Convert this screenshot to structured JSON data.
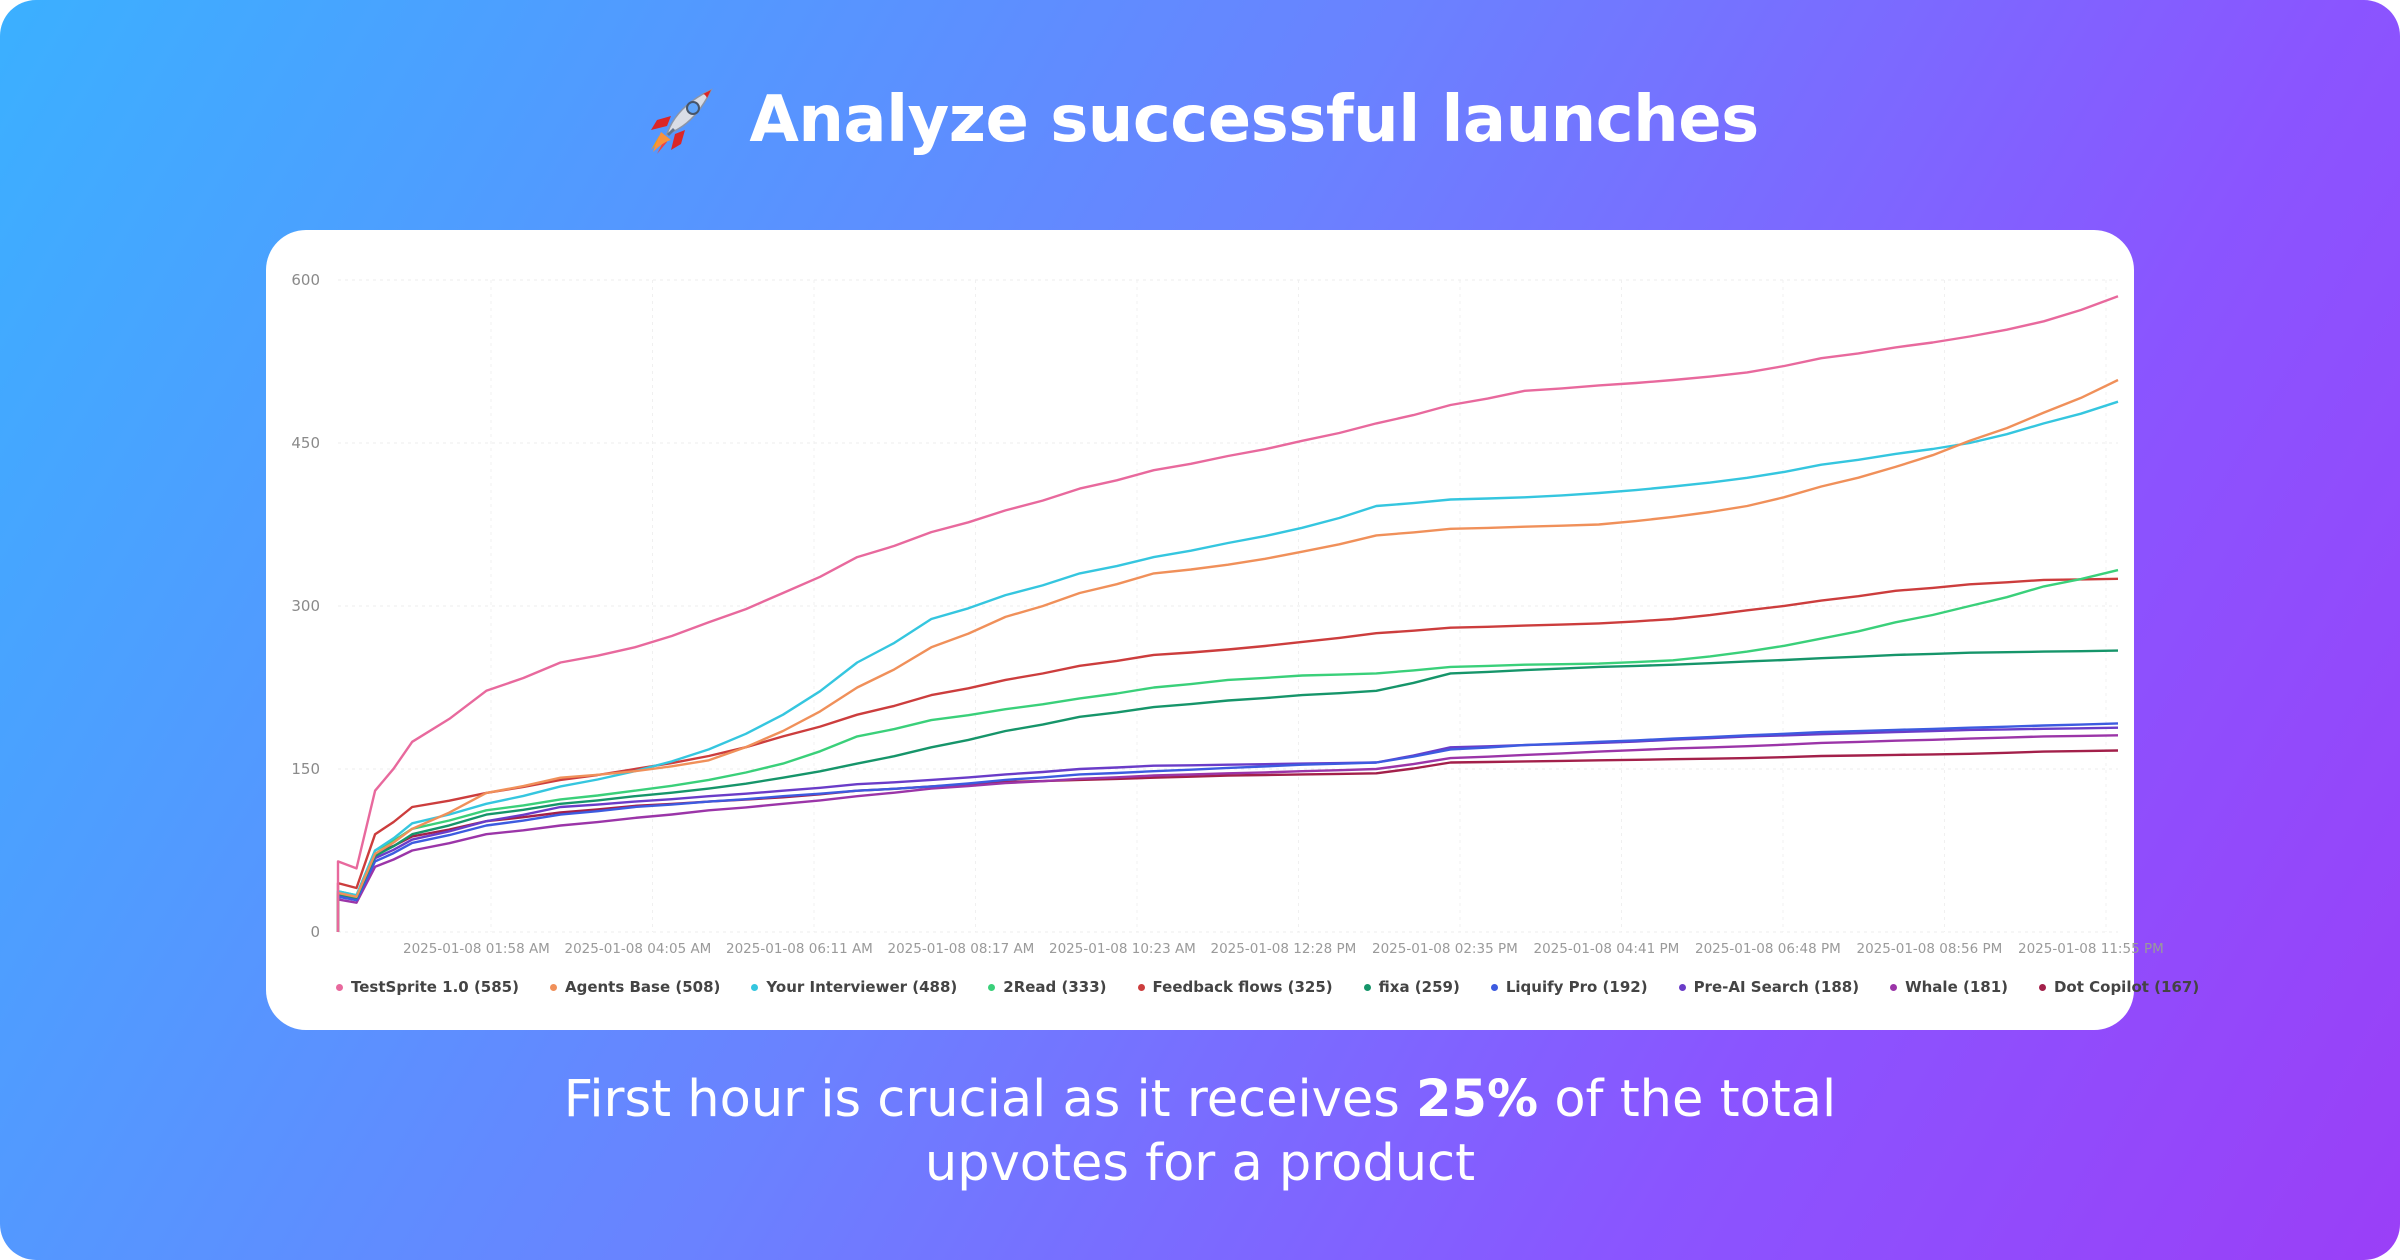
{
  "header": {
    "title": "Analyze successful launches",
    "icon": "rocket-icon"
  },
  "caption": {
    "line1_before": "First hour is crucial as it receives ",
    "line1_bold": "25%",
    "line1_after": " of the total",
    "line2": "upvotes for a product"
  },
  "chart_data": {
    "type": "line",
    "title": "",
    "xlabel": "",
    "ylabel": "",
    "ylim": [
      0,
      600
    ],
    "y_ticks": [
      0,
      150,
      300,
      450,
      600
    ],
    "grid": true,
    "legend_position": "bottom",
    "x_range": [
      "2025-01-08 00:01",
      "2025-01-09 00:00"
    ],
    "x_tick_labels": [
      "2025-01-08 01:58 AM",
      "2025-01-08 04:05 AM",
      "2025-01-08 06:11 AM",
      "2025-01-08 08:17 AM",
      "2025-01-08 10:23 AM",
      "2025-01-08 12:28 PM",
      "2025-01-08 02:35 PM",
      "2025-01-08 04:41 PM",
      "2025-01-08 06:48 PM",
      "2025-01-08 08:56 PM",
      "2025-01-08 11:55 PM"
    ],
    "x_hours": [
      0,
      0.5,
      1,
      2,
      3,
      4,
      5,
      6,
      7,
      8,
      9,
      10,
      11,
      12,
      13,
      14,
      15,
      16,
      17,
      18,
      19,
      20,
      21,
      22,
      23,
      24
    ],
    "series": [
      {
        "name": "TestSprite 1.0 (585)",
        "color": "#e8699d",
        "values": [
          0,
          130,
          175,
          222,
          248,
          262,
          285,
          312,
          345,
          368,
          388,
          408,
          425,
          438,
          452,
          468,
          485,
          498,
          503,
          508,
          515,
          528,
          538,
          548,
          562,
          585
        ]
      },
      {
        "name": "Agents Base (508)",
        "color": "#f0905a",
        "values": [
          0,
          72,
          95,
          128,
          142,
          148,
          158,
          185,
          225,
          262,
          290,
          312,
          330,
          338,
          350,
          365,
          371,
          373,
          375,
          382,
          392,
          410,
          428,
          452,
          478,
          508
        ]
      },
      {
        "name": "Your Interviewer (488)",
        "color": "#35c6df",
        "values": [
          0,
          75,
          100,
          118,
          134,
          148,
          168,
          200,
          248,
          288,
          310,
          330,
          345,
          358,
          372,
          392,
          398,
          400,
          404,
          410,
          418,
          430,
          440,
          450,
          468,
          488
        ]
      },
      {
        "name": "2Read (333)",
        "color": "#3ad07a",
        "values": [
          0,
          75,
          95,
          112,
          122,
          130,
          140,
          155,
          180,
          195,
          205,
          215,
          225,
          232,
          236,
          238,
          244,
          246,
          247,
          250,
          258,
          270,
          285,
          300,
          318,
          333
        ]
      },
      {
        "name": "Feedback flows (325)",
        "color": "#cc3d3d",
        "values": [
          0,
          90,
          115,
          128,
          140,
          150,
          162,
          180,
          200,
          218,
          232,
          245,
          255,
          260,
          267,
          275,
          280,
          282,
          284,
          288,
          296,
          305,
          314,
          320,
          324,
          325
        ]
      },
      {
        "name": "fixa (259)",
        "color": "#16956a",
        "values": [
          0,
          70,
          90,
          108,
          118,
          125,
          132,
          142,
          155,
          170,
          185,
          198,
          207,
          213,
          218,
          222,
          238,
          241,
          244,
          246,
          249,
          252,
          255,
          257,
          258,
          259
        ]
      },
      {
        "name": "Liquify Pro (192)",
        "color": "#3d5be0",
        "values": [
          0,
          65,
          82,
          98,
          108,
          115,
          120,
          125,
          130,
          134,
          140,
          145,
          148,
          151,
          154,
          156,
          168,
          172,
          175,
          178,
          181,
          184,
          186,
          188,
          190,
          192
        ]
      },
      {
        "name": "Pre-AI Search (188)",
        "color": "#6a3cc8",
        "values": [
          0,
          68,
          85,
          102,
          115,
          120,
          125,
          130,
          136,
          140,
          145,
          150,
          153,
          154,
          155,
          156,
          170,
          172,
          174,
          177,
          180,
          182,
          184,
          186,
          187,
          188
        ]
      },
      {
        "name": "Whale (181)",
        "color": "#9b35a8",
        "values": [
          0,
          60,
          75,
          90,
          98,
          105,
          112,
          118,
          125,
          132,
          137,
          141,
          144,
          146,
          148,
          150,
          160,
          163,
          166,
          169,
          171,
          174,
          176,
          178,
          180,
          181
        ]
      },
      {
        "name": "Dot Copilot (167)",
        "color": "#a3204a",
        "values": [
          0,
          72,
          88,
          102,
          110,
          116,
          120,
          124,
          130,
          134,
          138,
          140,
          142,
          144,
          145,
          146,
          156,
          157,
          158,
          159,
          160,
          162,
          163,
          164,
          166,
          167
        ]
      }
    ]
  }
}
